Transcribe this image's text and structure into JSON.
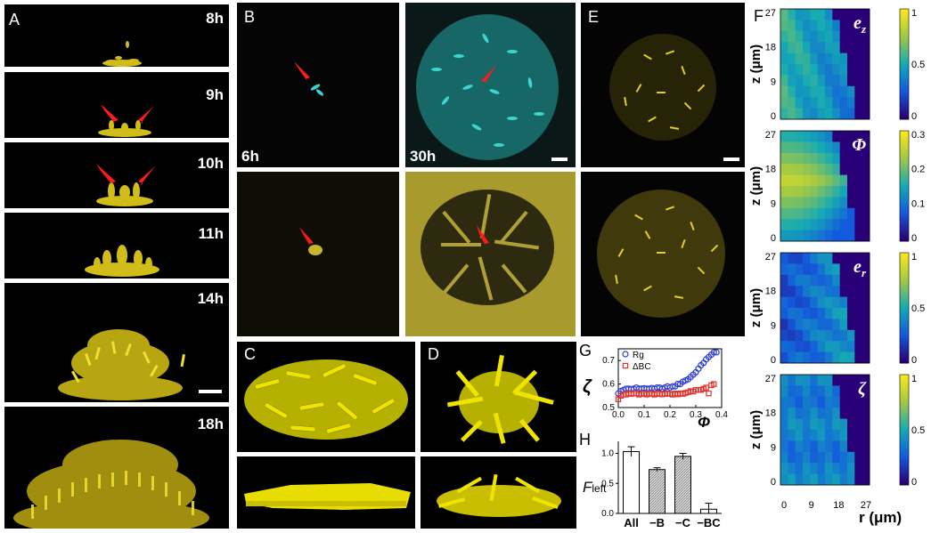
{
  "panels": {
    "A": {
      "label": "A",
      "times": [
        "8h",
        "9h",
        "10h",
        "11h",
        "14h",
        "18h"
      ]
    },
    "B": {
      "label": "B",
      "time_left": "6h",
      "time_right": "30h"
    },
    "C": {
      "label": "C"
    },
    "D": {
      "label": "D"
    },
    "E": {
      "label": "E"
    },
    "F": {
      "label": "F",
      "maps": [
        {
          "symbol": "e",
          "sub": "z",
          "cbar_ticks": [
            "1",
            "0.5",
            "0"
          ]
        },
        {
          "symbol": "Φ",
          "sub": "",
          "cbar_ticks": [
            "0.3",
            "0.2",
            "0.1",
            "0"
          ]
        },
        {
          "symbol": "e",
          "sub": "r",
          "cbar_ticks": [
            "1",
            "0.5",
            "0"
          ]
        },
        {
          "symbol": "ζ",
          "sub": "",
          "cbar_ticks": [
            "1",
            "0.5",
            "0"
          ]
        }
      ],
      "z_ticks": [
        "27",
        "18",
        "9",
        "0"
      ],
      "r_ticks": [
        "0",
        "9",
        "18",
        "27"
      ],
      "ylabel": "z (μm)",
      "xlabel": "r (μm)"
    },
    "G": {
      "label": "G",
      "ylabel": "ζ",
      "xlabel": "Φ",
      "legend": [
        "Rg",
        "ΔBC"
      ]
    },
    "H": {
      "label": "H",
      "ylabel": "F",
      "ylabel_sub": "left"
    }
  },
  "chart_data": [
    {
      "type": "scatter",
      "panel": "G",
      "xlabel": "Φ",
      "ylabel": "ζ",
      "xlim": [
        0,
        0.4
      ],
      "ylim": [
        0.5,
        0.75
      ],
      "x_ticks": [
        "0.0",
        "0.1",
        "0.2",
        "0.3",
        "0.4"
      ],
      "y_ticks": [
        "0.5",
        "0.6",
        "0.7"
      ],
      "series": [
        {
          "name": "Rg",
          "color": "#2a3bd6",
          "marker": "circle",
          "x": [
            0.0,
            0.01,
            0.02,
            0.03,
            0.04,
            0.05,
            0.06,
            0.07,
            0.08,
            0.09,
            0.1,
            0.11,
            0.12,
            0.13,
            0.14,
            0.15,
            0.16,
            0.17,
            0.18,
            0.19,
            0.2,
            0.21,
            0.22,
            0.23,
            0.24,
            0.25,
            0.26,
            0.27,
            0.28,
            0.29,
            0.3,
            0.31,
            0.32,
            0.33,
            0.34,
            0.35,
            0.36,
            0.37,
            0.38
          ],
          "y": [
            0.56,
            0.57,
            0.575,
            0.58,
            0.58,
            0.578,
            0.58,
            0.585,
            0.58,
            0.58,
            0.582,
            0.58,
            0.58,
            0.583,
            0.58,
            0.585,
            0.585,
            0.58,
            0.585,
            0.59,
            0.585,
            0.59,
            0.59,
            0.6,
            0.6,
            0.61,
            0.615,
            0.62,
            0.63,
            0.64,
            0.65,
            0.665,
            0.68,
            0.69,
            0.705,
            0.715,
            0.725,
            0.735,
            0.735
          ]
        },
        {
          "name": "ΔBC",
          "color": "#e0302a",
          "marker": "square",
          "x": [
            0.0,
            0.01,
            0.02,
            0.03,
            0.04,
            0.05,
            0.06,
            0.07,
            0.08,
            0.09,
            0.1,
            0.11,
            0.12,
            0.13,
            0.14,
            0.15,
            0.16,
            0.17,
            0.18,
            0.19,
            0.2,
            0.21,
            0.22,
            0.23,
            0.24,
            0.25,
            0.26,
            0.27,
            0.28,
            0.29,
            0.3,
            0.31,
            0.32,
            0.33,
            0.34,
            0.35,
            0.36,
            0.37
          ],
          "y": [
            0.535,
            0.55,
            0.555,
            0.555,
            0.56,
            0.558,
            0.56,
            0.56,
            0.555,
            0.558,
            0.56,
            0.555,
            0.56,
            0.558,
            0.555,
            0.56,
            0.558,
            0.556,
            0.558,
            0.56,
            0.558,
            0.555,
            0.56,
            0.556,
            0.56,
            0.558,
            0.562,
            0.565,
            0.57,
            0.568,
            0.575,
            0.575,
            0.575,
            0.58,
            0.585,
            0.56,
            0.595,
            0.6
          ]
        }
      ]
    },
    {
      "type": "bar",
      "panel": "H",
      "categories": [
        "All",
        "−B",
        "−C",
        "−BC"
      ],
      "values": [
        1.03,
        0.73,
        0.95,
        0.07
      ],
      "errors": [
        0.08,
        0.03,
        0.05,
        0.1
      ],
      "patterns": [
        "white",
        "hatched",
        "hatched",
        "white"
      ],
      "ylim": [
        0,
        1.2
      ],
      "y_ticks": [
        "0.0",
        "0.5",
        "1.0"
      ]
    }
  ]
}
